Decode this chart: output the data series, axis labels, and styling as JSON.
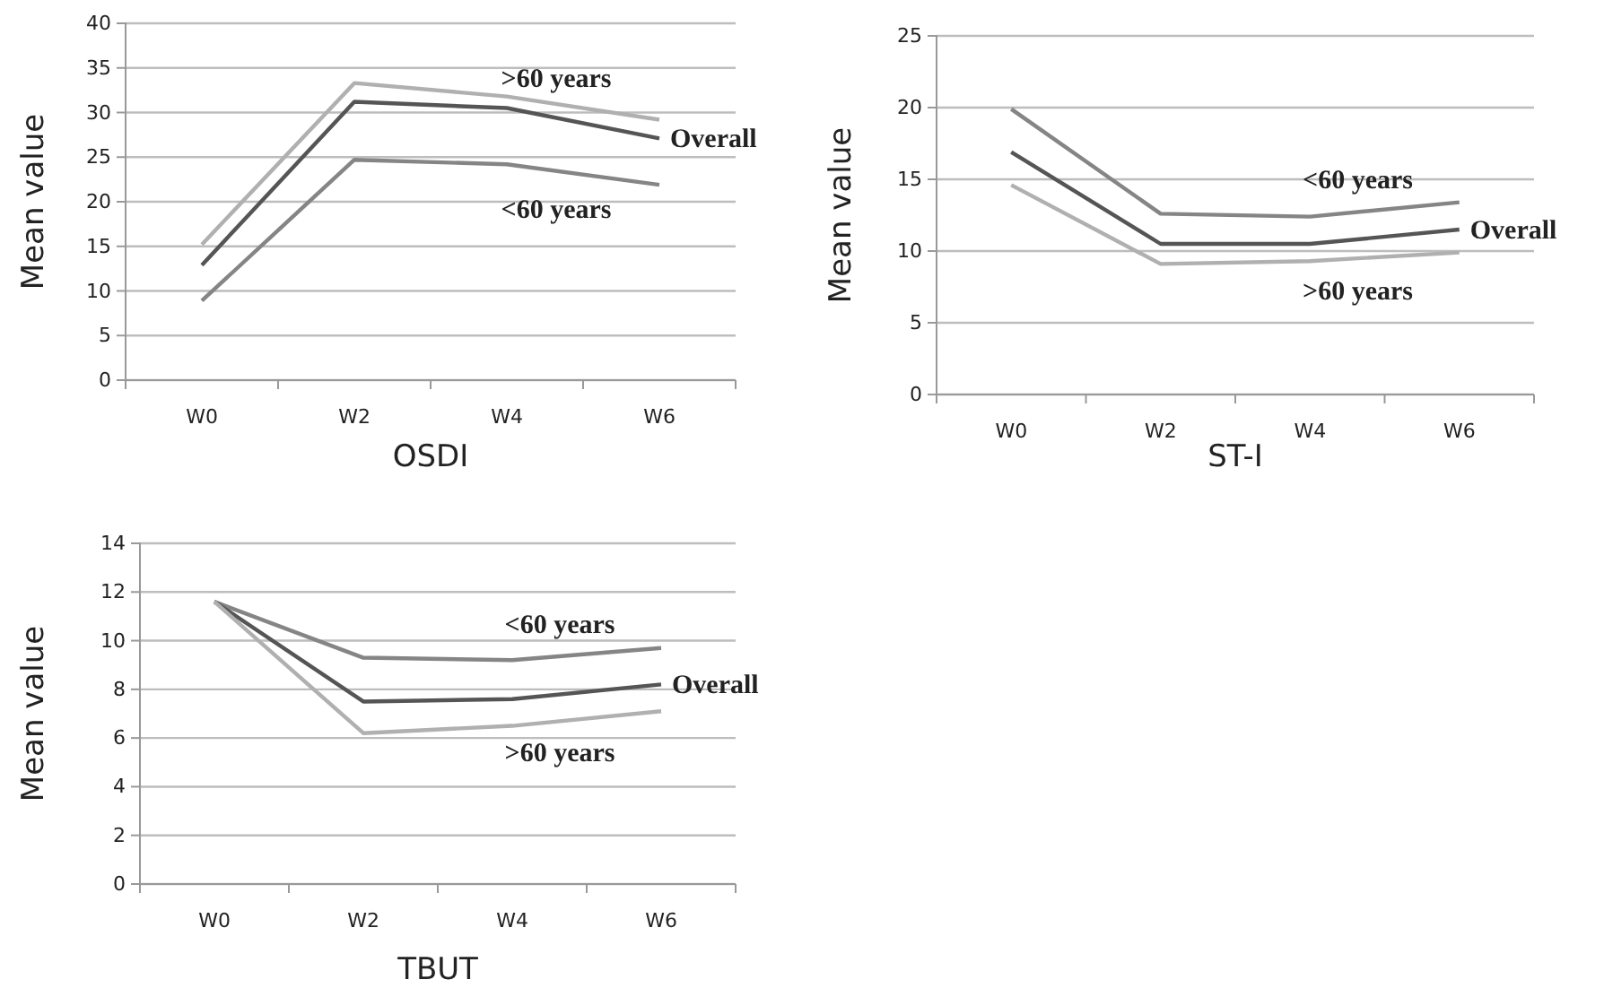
{
  "chart_data": [
    {
      "type": "line",
      "xlabel": "OSDI",
      "ylabel": "Mean value",
      "categories": [
        "W0",
        "W2",
        "W4",
        "W6"
      ],
      "ylim": [
        0,
        40
      ],
      "yticks": [
        0,
        5,
        10,
        15,
        20,
        25,
        30,
        35,
        40
      ],
      "grid": "y",
      "series": [
        {
          "name": ">60 years",
          "color": "#b0b0b0",
          "values": [
            15.2,
            33.3,
            31.8,
            29.2
          ]
        },
        {
          "name": "Overall",
          "color": "#555555",
          "values": [
            12.9,
            31.2,
            30.5,
            27.1
          ]
        },
        {
          "name": "<60 years",
          "color": "#858585",
          "values": [
            8.9,
            24.7,
            24.2,
            21.9
          ]
        }
      ]
    },
    {
      "type": "line",
      "xlabel": "ST-I",
      "ylabel": "Mean value",
      "categories": [
        "W0",
        "W2",
        "W4",
        "W6"
      ],
      "ylim": [
        0,
        25
      ],
      "yticks": [
        0,
        5,
        10,
        15,
        20,
        25
      ],
      "grid": "y",
      "series": [
        {
          "name": "<60 years",
          "color": "#858585",
          "values": [
            19.9,
            12.6,
            12.4,
            13.4
          ]
        },
        {
          "name": "Overall",
          "color": "#555555",
          "values": [
            16.9,
            10.5,
            10.5,
            11.5
          ]
        },
        {
          "name": ">60 years",
          "color": "#b0b0b0",
          "values": [
            14.6,
            9.1,
            9.3,
            9.9
          ]
        }
      ]
    },
    {
      "type": "line",
      "xlabel": "TBUT",
      "ylabel": "Mean value",
      "categories": [
        "W0",
        "W2",
        "W4",
        "W6"
      ],
      "ylim": [
        0,
        14
      ],
      "yticks": [
        0,
        2,
        4,
        6,
        8,
        10,
        12,
        14
      ],
      "grid": "y",
      "series": [
        {
          "name": "<60 years",
          "color": "#858585",
          "values": [
            11.6,
            9.3,
            9.2,
            9.7
          ]
        },
        {
          "name": "Overall",
          "color": "#555555",
          "values": [
            11.6,
            7.5,
            7.6,
            8.2
          ]
        },
        {
          "name": ">60 years",
          "color": "#b0b0b0",
          "values": [
            11.6,
            6.2,
            6.5,
            7.1
          ]
        }
      ]
    }
  ]
}
